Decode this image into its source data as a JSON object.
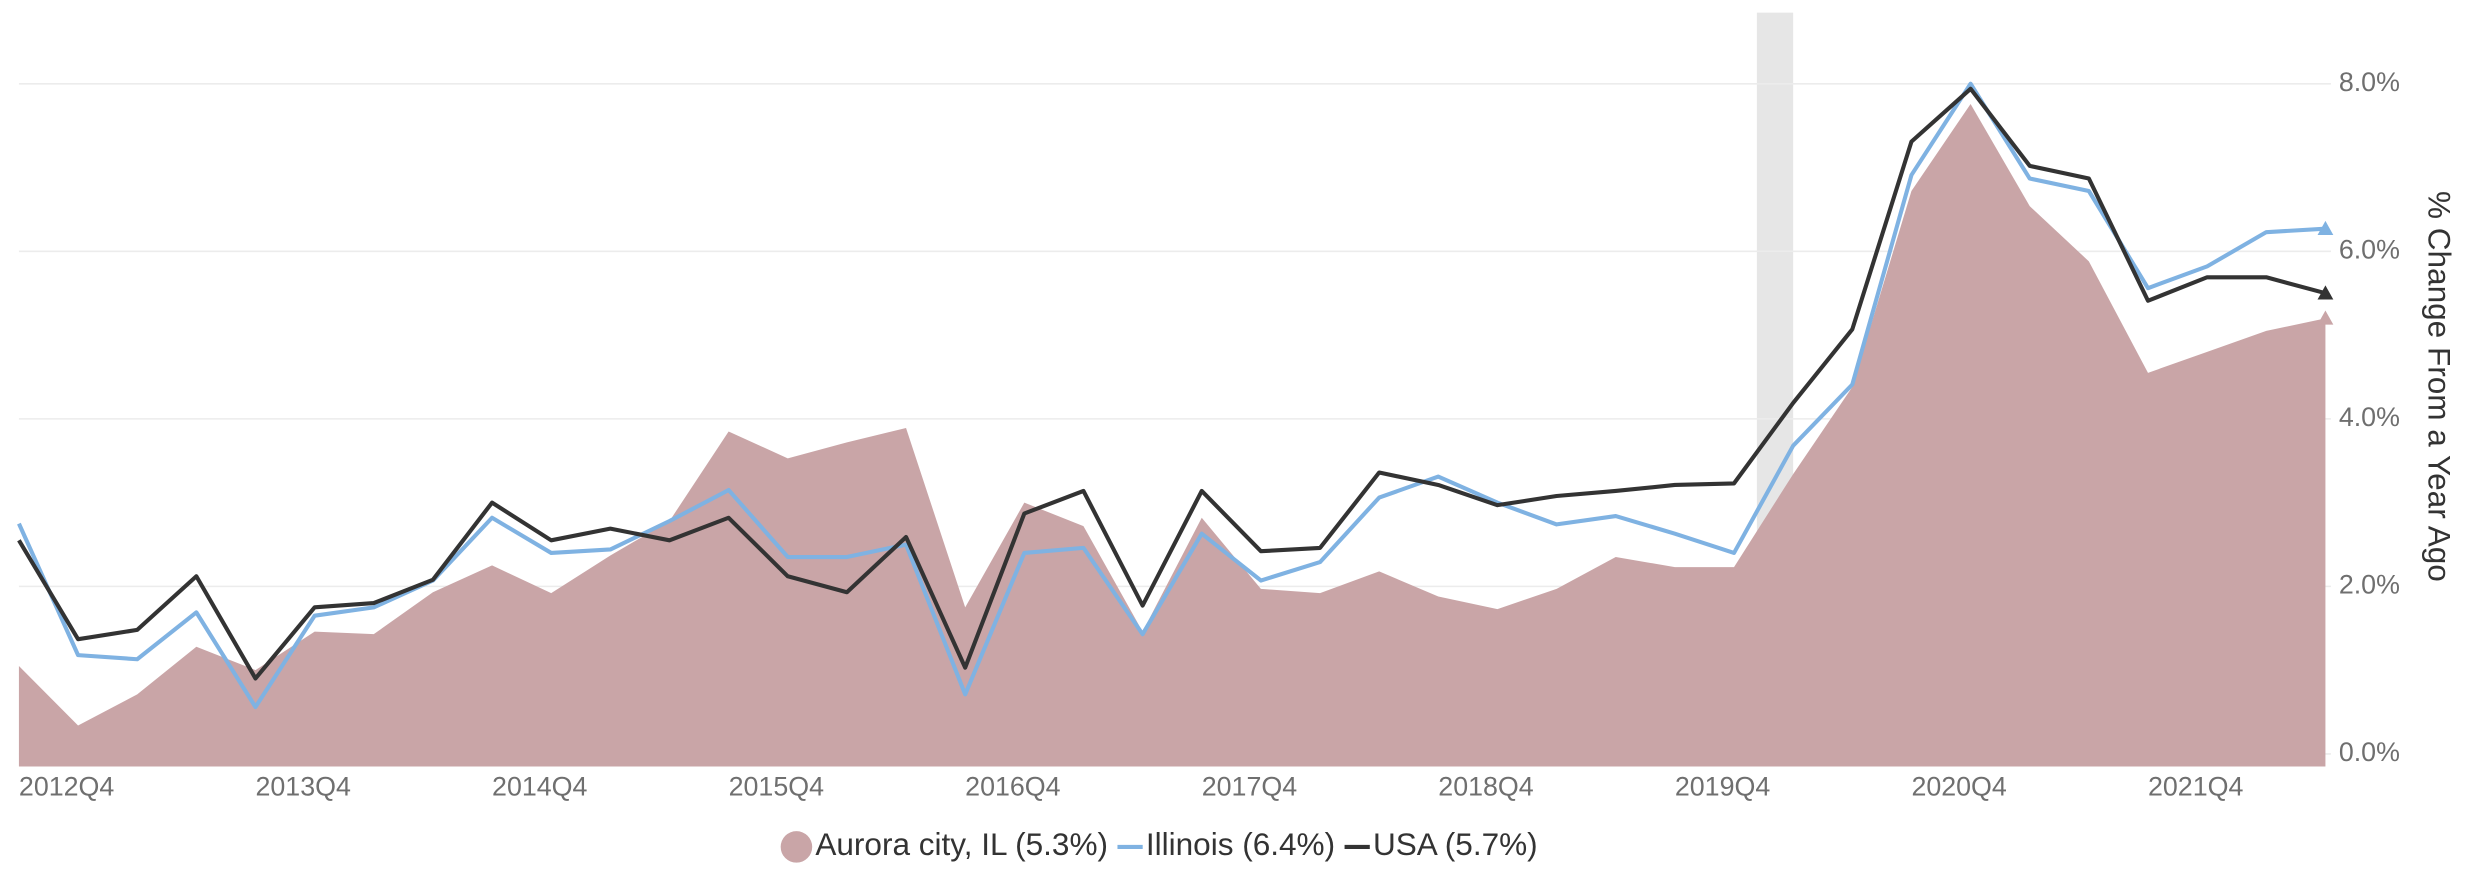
{
  "chart_data": {
    "type": "line",
    "categories": [
      "2012Q4",
      null,
      null,
      null,
      "2013Q4",
      null,
      null,
      null,
      "2014Q4",
      null,
      null,
      null,
      "2015Q4",
      null,
      null,
      null,
      "2016Q4",
      null,
      null,
      null,
      "2017Q4",
      null,
      null,
      null,
      "2018Q4",
      null,
      null,
      null,
      "2019Q4",
      null,
      null,
      null,
      "2020Q4",
      null,
      null,
      null,
      "2021Q4",
      null,
      null,
      null
    ],
    "y_label": "% Change From a Year Ago",
    "ylim": [
      -0.15,
      8.85
    ],
    "yticks": [
      {
        "value": 0,
        "label": "0.0%"
      },
      {
        "value": 2,
        "label": "2.0%"
      },
      {
        "value": 4,
        "label": "4.0%"
      },
      {
        "value": 6,
        "label": "6.0%"
      },
      {
        "value": 8,
        "label": "8.0%"
      }
    ],
    "grid": true,
    "legend": "bottom",
    "series": [
      {
        "name": "Aurora city, IL (5.3%)",
        "style": "area",
        "color": "#c9a5a7",
        "values": [
          1.05,
          0.34,
          0.71,
          1.28,
          1.0,
          1.46,
          1.43,
          1.93,
          2.25,
          1.92,
          2.37,
          2.78,
          3.85,
          3.53,
          3.72,
          3.89,
          1.75,
          3.0,
          2.72,
          1.46,
          2.82,
          1.97,
          1.92,
          2.18,
          1.88,
          1.73,
          1.97,
          2.35,
          2.23,
          2.23,
          3.34,
          4.38,
          6.72,
          7.76,
          6.54,
          5.88,
          4.55,
          4.8,
          5.05,
          5.2
        ]
      },
      {
        "name": "Illinois (6.4%)",
        "style": "line",
        "color": "#7fb2e2",
        "values": [
          2.75,
          1.18,
          1.13,
          1.69,
          0.56,
          1.65,
          1.75,
          2.07,
          2.82,
          2.4,
          2.44,
          2.78,
          3.15,
          2.35,
          2.35,
          2.5,
          0.71,
          2.4,
          2.46,
          1.43,
          2.63,
          2.07,
          2.29,
          3.06,
          3.31,
          3.0,
          2.74,
          2.84,
          2.63,
          2.4,
          3.68,
          4.41,
          6.91,
          8.0,
          6.87,
          6.72,
          5.56,
          5.82,
          6.23,
          6.27
        ]
      },
      {
        "name": "USA (5.7%)",
        "style": "line",
        "color": "#333333",
        "values": [
          2.55,
          1.37,
          1.48,
          2.12,
          0.9,
          1.75,
          1.8,
          2.08,
          3.0,
          2.55,
          2.69,
          2.55,
          2.82,
          2.12,
          1.93,
          2.59,
          1.03,
          2.87,
          3.14,
          1.77,
          3.14,
          2.42,
          2.46,
          3.36,
          3.21,
          2.97,
          3.08,
          3.14,
          3.21,
          3.23,
          4.19,
          5.07,
          7.31,
          7.94,
          7.02,
          6.87,
          5.41,
          5.69,
          5.69,
          5.5
        ]
      }
    ]
  }
}
